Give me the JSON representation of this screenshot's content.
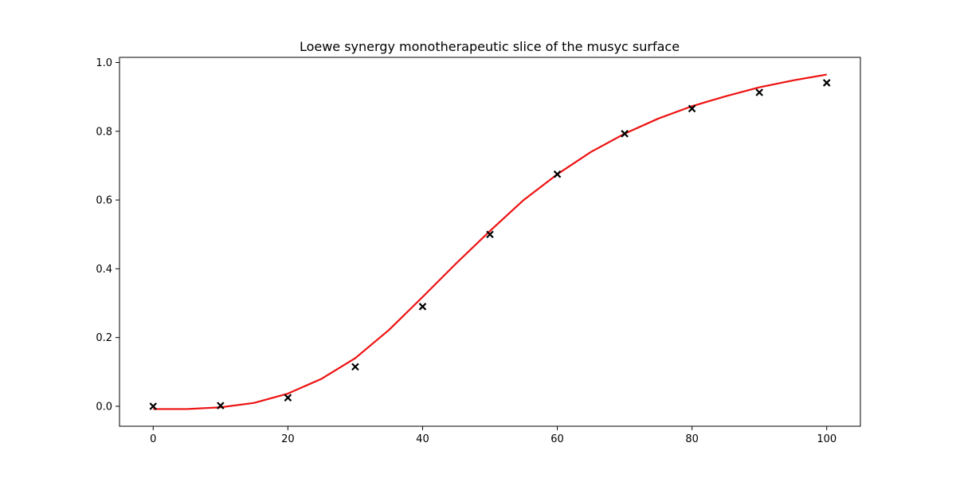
{
  "chart_data": {
    "type": "scatter",
    "title": "Loewe synergy monotherapeutic slice of the musyc surface",
    "xlabel": "",
    "ylabel": "",
    "xlim": [
      -5,
      105
    ],
    "ylim": [
      -0.058,
      1.015
    ],
    "xticks": [
      0,
      20,
      40,
      60,
      80,
      100
    ],
    "xtick_labels": [
      "0",
      "20",
      "40",
      "60",
      "80",
      "100"
    ],
    "yticks": [
      0.0,
      0.2,
      0.4,
      0.6,
      0.8,
      1.0
    ],
    "ytick_labels": [
      "0.0",
      "0.2",
      "0.4",
      "0.6",
      "0.8",
      "1.0"
    ],
    "grid": false,
    "legend": "none",
    "series": [
      {
        "kind": "scatter",
        "marker": "x",
        "color": "#000000",
        "x": [
          0,
          10,
          20,
          30,
          40,
          50,
          60,
          70,
          80,
          90,
          100
        ],
        "y": [
          0.0,
          0.002,
          0.025,
          0.115,
          0.29,
          0.5,
          0.675,
          0.793,
          0.866,
          0.913,
          0.941
        ]
      },
      {
        "kind": "line",
        "color": "#ee1111",
        "x": [
          0,
          5,
          10,
          15,
          20,
          25,
          30,
          35,
          40,
          45,
          50,
          55,
          60,
          65,
          70,
          75,
          80,
          85,
          90,
          95,
          100
        ],
        "y": [
          -0.008,
          -0.008,
          -0.003,
          0.01,
          0.037,
          0.08,
          0.14,
          0.222,
          0.318,
          0.416,
          0.51,
          0.6,
          0.675,
          0.74,
          0.793,
          0.837,
          0.873,
          0.902,
          0.928,
          0.948,
          0.965
        ]
      }
    ]
  }
}
